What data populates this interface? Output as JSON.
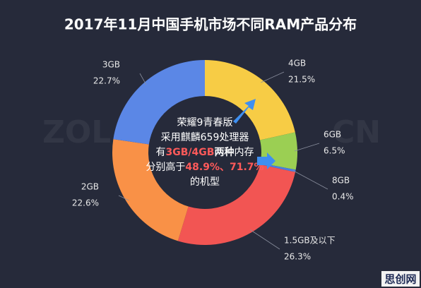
{
  "chart_data": {
    "type": "donut",
    "title": "2017年11月中国手机市场不同RAM产品分布",
    "categories": [
      "4GB",
      "6GB",
      "8GB",
      "1.5GB及以下",
      "2GB",
      "3GB"
    ],
    "values": [
      21.5,
      6.5,
      0.4,
      26.3,
      22.6,
      22.7
    ],
    "value_labels": [
      "21.5%",
      "6.5%",
      "0.4%",
      "26.3%",
      "22.6%",
      "22.7%"
    ],
    "colors": [
      "#f7cc45",
      "#9bcf53",
      "#4a7fe0",
      "#f25553",
      "#f99147",
      "#5b87e6"
    ],
    "annotation": [
      [
        {
          "text": "荣耀9青春版",
          "color": "#ffffff"
        }
      ],
      [
        {
          "text": "采用麒麟659处理器",
          "color": "#ffffff"
        }
      ],
      [
        {
          "text": "有",
          "color": "#ffffff"
        },
        {
          "text": "3GB/4GB",
          "color": "#ff5a5a",
          "bold": true
        },
        {
          "text": "两种",
          "color": "#ffffff",
          "bold": true
        },
        {
          "text": "内存",
          "color": "#ffffff"
        }
      ],
      [
        {
          "text": "分别高于",
          "color": "#ffffff"
        },
        {
          "text": "48.9%、71.7%",
          "color": "#ff5a5a",
          "bold": true
        }
      ],
      [
        {
          "text": "的机型",
          "color": "#ffffff"
        }
      ]
    ]
  },
  "watermark": [
    "ZOL",
    "CN"
  ],
  "logo": "思创网"
}
